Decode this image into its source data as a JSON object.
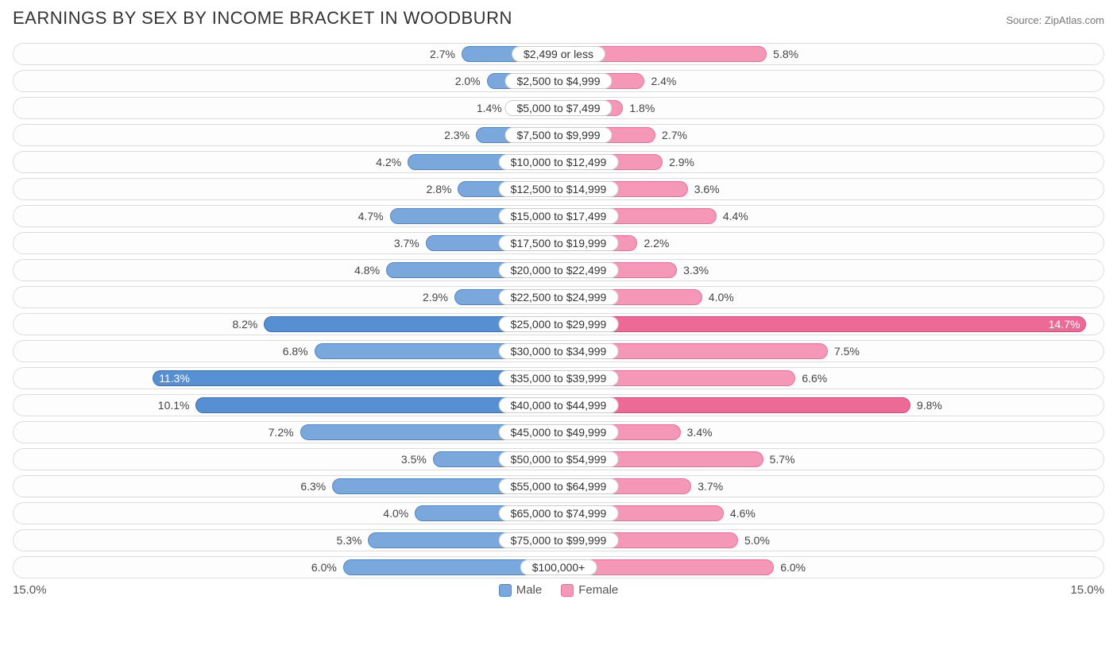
{
  "title": "EARNINGS BY SEX BY INCOME BRACKET IN WODBURN",
  "title_actual": "EARNINGS BY SEX BY INCOME BRACKET IN WOODBURN",
  "source": "Source: ZipAtlas.com",
  "chart": {
    "type": "diverging-bar",
    "axis_max": 15.0,
    "axis_label_left": "15.0%",
    "axis_label_right": "15.0%",
    "colors": {
      "male_fill": "#7aa8dd",
      "male_border": "#4f86c6",
      "male_highlight_fill": "#5690d3",
      "male_highlight_border": "#3a72b5",
      "female_fill": "#f598b7",
      "female_border": "#e96f97",
      "female_highlight_fill": "#ee6a96",
      "female_highlight_border": "#d94a7c",
      "row_border": "#dddddd",
      "row_bg": "#fdfdfd",
      "text": "#444444",
      "title_color": "#333333"
    },
    "legend": [
      {
        "label": "Male",
        "fill": "#7aa8dd",
        "border": "#4f86c6"
      },
      {
        "label": "Female",
        "fill": "#f598b7",
        "border": "#e96f97"
      }
    ],
    "rows": [
      {
        "category": "$2,499 or less",
        "male": 2.7,
        "female": 5.8
      },
      {
        "category": "$2,500 to $4,999",
        "male": 2.0,
        "female": 2.4
      },
      {
        "category": "$5,000 to $7,499",
        "male": 1.4,
        "female": 1.8
      },
      {
        "category": "$7,500 to $9,999",
        "male": 2.3,
        "female": 2.7
      },
      {
        "category": "$10,000 to $12,499",
        "male": 4.2,
        "female": 2.9
      },
      {
        "category": "$12,500 to $14,999",
        "male": 2.8,
        "female": 3.6
      },
      {
        "category": "$15,000 to $17,499",
        "male": 4.7,
        "female": 4.4
      },
      {
        "category": "$17,500 to $19,999",
        "male": 3.7,
        "female": 2.2
      },
      {
        "category": "$20,000 to $22,499",
        "male": 4.8,
        "female": 3.3
      },
      {
        "category": "$22,500 to $24,999",
        "male": 2.9,
        "female": 4.0
      },
      {
        "category": "$25,000 to $29,999",
        "male": 8.2,
        "female": 14.7,
        "highlight": true
      },
      {
        "category": "$30,000 to $34,999",
        "male": 6.8,
        "female": 7.5
      },
      {
        "category": "$35,000 to $39,999",
        "male": 11.3,
        "female": 6.6,
        "male_highlight": true
      },
      {
        "category": "$40,000 to $44,999",
        "male": 10.1,
        "female": 9.8,
        "highlight": true
      },
      {
        "category": "$45,000 to $49,999",
        "male": 7.2,
        "female": 3.4
      },
      {
        "category": "$50,000 to $54,999",
        "male": 3.5,
        "female": 5.7
      },
      {
        "category": "$55,000 to $64,999",
        "male": 6.3,
        "female": 3.7
      },
      {
        "category": "$65,000 to $74,999",
        "male": 4.0,
        "female": 4.6
      },
      {
        "category": "$75,000 to $99,999",
        "male": 5.3,
        "female": 5.0
      },
      {
        "category": "$100,000+",
        "male": 6.0,
        "female": 6.0
      }
    ]
  }
}
